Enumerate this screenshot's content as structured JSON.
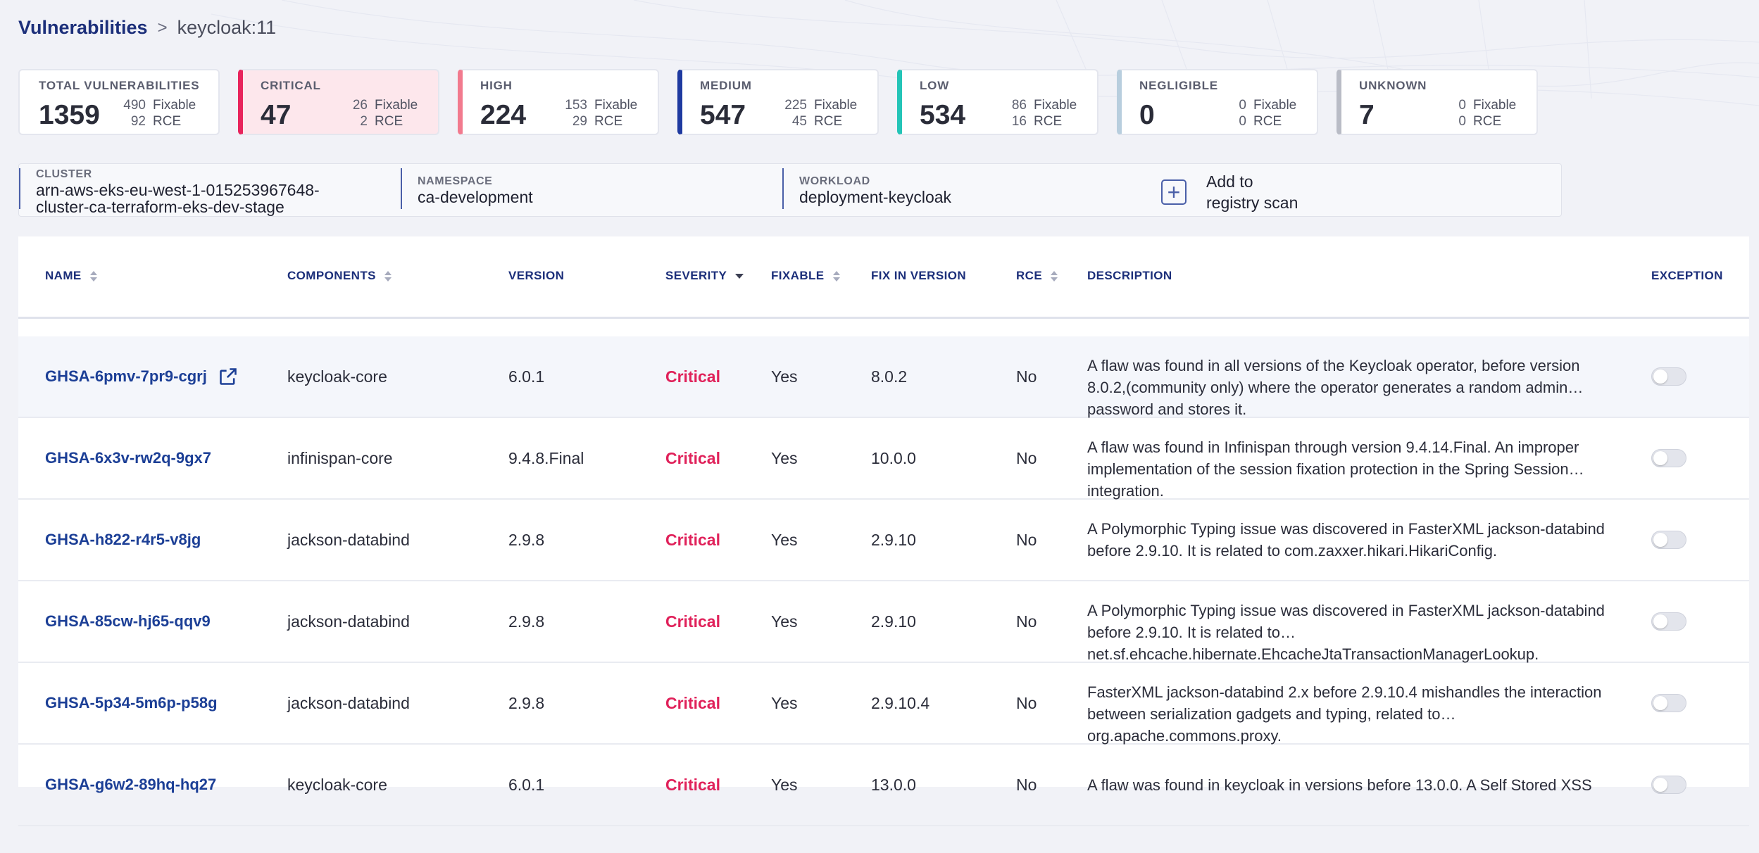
{
  "breadcrumb": {
    "root": "Vulnerabilities",
    "separator": ">",
    "current": "keycloak:11"
  },
  "summary_cards": [
    {
      "label": "TOTAL VULNERABILITIES",
      "total": "1359",
      "fixable": "490",
      "fixable_label": "Fixable",
      "rce": "92",
      "rce_label": "RCE",
      "accent": ""
    },
    {
      "label": "CRITICAL",
      "total": "47",
      "fixable": "26",
      "fixable_label": "Fixable",
      "rce": "2",
      "rce_label": "RCE",
      "accent": "#e8245c"
    },
    {
      "label": "HIGH",
      "total": "224",
      "fixable": "153",
      "fixable_label": "Fixable",
      "rce": "29",
      "rce_label": "RCE",
      "accent": "#f27a8e"
    },
    {
      "label": "MEDIUM",
      "total": "547",
      "fixable": "225",
      "fixable_label": "Fixable",
      "rce": "45",
      "rce_label": "RCE",
      "accent": "#1f3aa0"
    },
    {
      "label": "LOW",
      "total": "534",
      "fixable": "86",
      "fixable_label": "Fixable",
      "rce": "16",
      "rce_label": "RCE",
      "accent": "#24c4b7"
    },
    {
      "label": "NEGLIGIBLE",
      "total": "0",
      "fixable": "0",
      "fixable_label": "Fixable",
      "rce": "0",
      "rce_label": "RCE",
      "accent": "#b8cede"
    },
    {
      "label": "UNKNOWN",
      "total": "7",
      "fixable": "0",
      "fixable_label": "Fixable",
      "rce": "0",
      "rce_label": "RCE",
      "accent": "#b9bcc6"
    }
  ],
  "filters": {
    "cluster_label": "CLUSTER",
    "cluster_value_1": "arn-aws-eks-eu-west-1-015253967648-",
    "cluster_value_2": "cluster-ca-terraform-eks-dev-stage",
    "namespace_label": "NAMESPACE",
    "namespace_value": "ca-development",
    "workload_label": "WORKLOAD",
    "workload_value": "deployment-keycloak",
    "add_label_1": "Add to",
    "add_label_2": "registry scan"
  },
  "table": {
    "headers": {
      "name": "NAME",
      "components": "COMPONENTS",
      "version": "VERSION",
      "severity": "SEVERITY",
      "fixable": "FIXABLE",
      "fix_in_version": "FIX IN VERSION",
      "rce": "RCE",
      "description": "DESCRIPTION",
      "exception": "EXCEPTION"
    },
    "rows": [
      {
        "name": "GHSA-6pmv-7pr9-cgrj",
        "component": "keycloak-core",
        "version": "6.0.1",
        "severity": "Critical",
        "fixable": "Yes",
        "fix_in_version": "8.0.2",
        "rce": "No",
        "description": "A flaw was found in all versions of the Keycloak operator, before version 8.0.2,(community only) where the operator generates a random admin password and stores it."
      },
      {
        "name": "GHSA-6x3v-rw2q-9gx7",
        "component": "infinispan-core",
        "version": "9.4.8.Final",
        "severity": "Critical",
        "fixable": "Yes",
        "fix_in_version": "10.0.0",
        "rce": "No",
        "description": "A flaw was found in Infinispan through version 9.4.14.Final. An improper implementation of the session fixation protection in the Spring Session integration."
      },
      {
        "name": "GHSA-h822-r4r5-v8jg",
        "component": "jackson-databind",
        "version": "2.9.8",
        "severity": "Critical",
        "fixable": "Yes",
        "fix_in_version": "2.9.10",
        "rce": "No",
        "description": "A Polymorphic Typing issue was discovered in FasterXML jackson-databind before 2.9.10. It is related to com.zaxxer.hikari.HikariConfig."
      },
      {
        "name": "GHSA-85cw-hj65-qqv9",
        "component": "jackson-databind",
        "version": "2.9.8",
        "severity": "Critical",
        "fixable": "Yes",
        "fix_in_version": "2.9.10",
        "rce": "No",
        "description": "A Polymorphic Typing issue was discovered in FasterXML jackson-databind before 2.9.10. It is related to net.sf.ehcache.hibernate.EhcacheJtaTransactionManagerLookup."
      },
      {
        "name": "GHSA-5p34-5m6p-p58g",
        "component": "jackson-databind",
        "version": "2.9.8",
        "severity": "Critical",
        "fixable": "Yes",
        "fix_in_version": "2.9.10.4",
        "rce": "No",
        "description": "FasterXML jackson-databind 2.x before 2.9.10.4 mishandles the interaction between serialization gadgets and typing, related to org.apache.commons.proxy."
      },
      {
        "name": "GHSA-g6w2-89hq-hq27",
        "component": "keycloak-core",
        "version": "6.0.1",
        "severity": "Critical",
        "fixable": "Yes",
        "fix_in_version": "13.0.0",
        "rce": "No",
        "description": "A flaw was found in keycloak in versions before 13.0.0. A Self Stored XSS"
      }
    ]
  },
  "colors": {
    "link": "#1c3f96",
    "critical": "#e0215a",
    "selected_card_bg": "#fde7ec"
  }
}
